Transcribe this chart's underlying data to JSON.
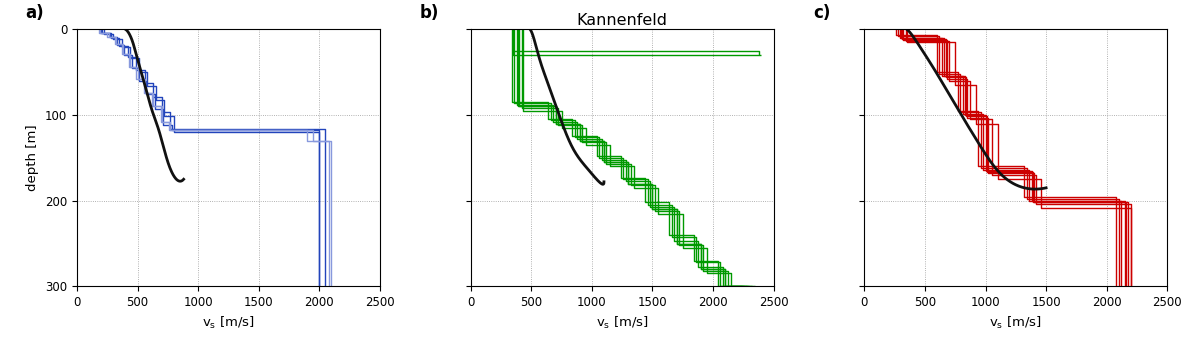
{
  "title_b": "Kannenfeld",
  "panel_labels": [
    "a)",
    "b)",
    "c)"
  ],
  "ylabel": "depth [m]",
  "xlim": [
    0,
    2500
  ],
  "ylim": [
    300,
    0
  ],
  "yticks": [
    0,
    100,
    200,
    300
  ],
  "xticks": [
    0,
    500,
    1000,
    1500,
    2000,
    2500
  ],
  "color_a": "#2244bb",
  "color_a_light": "#8899dd",
  "color_b": "#009900",
  "color_c": "#cc0000",
  "color_black": "#111111",
  "note": "Each profile is [x_coords, y_coords] for direct plotting as step lines",
  "profiles_a_dark": [
    [
      [
        200,
        200,
        270,
        270,
        330,
        330,
        390,
        390,
        450,
        450,
        510,
        510,
        570,
        570,
        640,
        640,
        710,
        710,
        780,
        780,
        2000,
        2000
      ],
      [
        0,
        4,
        4,
        9,
        9,
        18,
        18,
        30,
        30,
        45,
        45,
        60,
        60,
        76,
        76,
        93,
        93,
        112,
        112,
        118,
        118,
        300
      ]
    ],
    [
      [
        220,
        220,
        300,
        300,
        370,
        370,
        440,
        440,
        510,
        510,
        580,
        580,
        650,
        650,
        720,
        720,
        800,
        800,
        2000,
        2000
      ],
      [
        0,
        5,
        5,
        11,
        11,
        21,
        21,
        34,
        34,
        50,
        50,
        66,
        66,
        83,
        83,
        101,
        101,
        120,
        120,
        300
      ]
    ],
    [
      [
        210,
        210,
        280,
        280,
        350,
        350,
        420,
        420,
        490,
        490,
        560,
        560,
        630,
        630,
        700,
        700,
        770,
        770,
        2050,
        2050
      ],
      [
        0,
        4,
        4,
        10,
        10,
        19,
        19,
        32,
        32,
        47,
        47,
        63,
        63,
        79,
        79,
        97,
        97,
        116,
        116,
        300
      ]
    ]
  ],
  "profiles_a_light": [
    [
      [
        180,
        180,
        250,
        250,
        310,
        310,
        370,
        370,
        430,
        430,
        490,
        490,
        550,
        550,
        620,
        620,
        690,
        690,
        760,
        760,
        1900,
        1900,
        2100,
        2100
      ],
      [
        0,
        4,
        4,
        9,
        9,
        17,
        17,
        29,
        29,
        44,
        44,
        58,
        58,
        74,
        74,
        90,
        90,
        108,
        108,
        118,
        118,
        130,
        130,
        300
      ]
    ],
    [
      [
        190,
        190,
        260,
        260,
        320,
        320,
        380,
        380,
        440,
        440,
        500,
        500,
        560,
        560,
        630,
        630,
        700,
        700,
        770,
        770,
        1950,
        1950,
        2080,
        2080
      ],
      [
        0,
        4,
        4,
        9,
        9,
        17,
        17,
        29,
        29,
        44,
        44,
        58,
        58,
        74,
        74,
        90,
        90,
        108,
        108,
        118,
        118,
        130,
        130,
        300
      ]
    ]
  ],
  "black_a": [
    [
      400,
      430,
      460,
      490,
      530,
      570,
      620,
      680,
      750,
      820,
      880
    ],
    [
      0,
      5,
      15,
      30,
      50,
      70,
      95,
      120,
      155,
      175,
      175
    ]
  ],
  "profiles_b": [
    [
      [
        350,
        350,
        2400,
        2400
      ],
      [
        0,
        30,
        30,
        30
      ]
    ],
    [
      [
        400,
        400,
        700,
        700,
        900,
        900,
        1100,
        1100,
        1300,
        1300,
        1500,
        1500,
        1700,
        1700,
        1900,
        1900,
        2100,
        2100,
        2300,
        2300
      ],
      [
        0,
        90,
        90,
        110,
        110,
        130,
        130,
        155,
        155,
        180,
        180,
        210,
        210,
        250,
        250,
        280,
        280,
        300,
        300,
        300
      ]
    ],
    [
      [
        430,
        430,
        750,
        750,
        950,
        950,
        1150,
        1150,
        1350,
        1350,
        1550,
        1550,
        1750,
        1750,
        1950,
        1950,
        2150,
        2150,
        2350,
        2350
      ],
      [
        0,
        95,
        95,
        115,
        115,
        135,
        135,
        160,
        160,
        185,
        185,
        215,
        215,
        255,
        255,
        285,
        285,
        300,
        300,
        300
      ]
    ],
    [
      [
        380,
        380,
        680,
        680,
        880,
        880,
        1080,
        1080,
        1280,
        1280,
        1480,
        1480,
        1680,
        1680,
        1880,
        1880,
        2080,
        2080,
        2280,
        2280
      ],
      [
        0,
        88,
        88,
        108,
        108,
        128,
        128,
        152,
        152,
        177,
        177,
        207,
        207,
        247,
        247,
        277,
        277,
        300,
        300,
        300
      ]
    ],
    [
      [
        360,
        360,
        660,
        660,
        860,
        860,
        1060,
        1060,
        1260,
        1260,
        1460,
        1460,
        1660,
        1660,
        1860,
        1860,
        2060,
        2060,
        2260,
        2260
      ],
      [
        0,
        86,
        86,
        106,
        106,
        126,
        126,
        150,
        150,
        175,
        175,
        205,
        205,
        242,
        242,
        272,
        272,
        300,
        300,
        300
      ]
    ],
    [
      [
        420,
        420,
        720,
        720,
        920,
        920,
        1120,
        1120,
        1320,
        1320,
        1520,
        1520,
        1720,
        1720,
        1920,
        1920,
        2120,
        2120,
        2320,
        2320
      ],
      [
        0,
        92,
        92,
        112,
        112,
        132,
        132,
        157,
        157,
        182,
        182,
        212,
        212,
        252,
        252,
        282,
        282,
        300,
        300,
        300
      ]
    ],
    [
      [
        390,
        390,
        700,
        700,
        900,
        900,
        1100,
        1100,
        1300,
        1300,
        1500,
        1500,
        1700,
        1700,
        1900,
        1900,
        2100,
        2100
      ],
      [
        0,
        90,
        90,
        110,
        110,
        130,
        130,
        155,
        155,
        180,
        180,
        210,
        210,
        250,
        250,
        280,
        280,
        300
      ]
    ],
    [
      [
        340,
        340,
        640,
        640,
        840,
        840,
        1040,
        1040,
        1240,
        1240,
        1440,
        1440,
        1640,
        1640,
        1840,
        1840,
        2040,
        2040,
        2240,
        2240
      ],
      [
        0,
        85,
        85,
        105,
        105,
        125,
        125,
        148,
        148,
        173,
        173,
        202,
        202,
        240,
        240,
        270,
        270,
        300,
        300,
        300
      ]
    ]
  ],
  "black_b": [
    [
      490,
      530,
      580,
      650,
      730,
      840,
      960,
      1060,
      1100
    ],
    [
      0,
      15,
      40,
      68,
      100,
      138,
      162,
      178,
      178
    ]
  ],
  "profiles_c": [
    [
      [
        300,
        300,
        660,
        660,
        830,
        830,
        1000,
        1000,
        1380,
        1380,
        2150,
        2150
      ],
      [
        0,
        10,
        10,
        55,
        55,
        100,
        100,
        165,
        165,
        200,
        200,
        300
      ]
    ],
    [
      [
        280,
        280,
        620,
        620,
        790,
        790,
        960,
        960,
        1340,
        1340,
        2100,
        2100
      ],
      [
        0,
        8,
        8,
        52,
        52,
        97,
        97,
        162,
        162,
        198,
        198,
        300
      ]
    ],
    [
      [
        320,
        320,
        680,
        680,
        850,
        850,
        1020,
        1020,
        1400,
        1400,
        2180,
        2180
      ],
      [
        0,
        12,
        12,
        58,
        58,
        103,
        103,
        168,
        168,
        202,
        202,
        300
      ]
    ],
    [
      [
        260,
        260,
        600,
        600,
        770,
        770,
        940,
        940,
        1320,
        1320,
        2080,
        2080
      ],
      [
        0,
        7,
        7,
        50,
        50,
        95,
        95,
        160,
        160,
        196,
        196,
        300
      ]
    ],
    [
      [
        340,
        340,
        700,
        700,
        870,
        870,
        1050,
        1050,
        1420,
        1420,
        2200,
        2200
      ],
      [
        0,
        14,
        14,
        60,
        60,
        105,
        105,
        170,
        170,
        204,
        204,
        300
      ]
    ],
    [
      [
        350,
        350,
        750,
        750,
        920,
        920,
        1100,
        1100,
        1460,
        1460,
        2200,
        2200
      ],
      [
        0,
        15,
        15,
        65,
        65,
        110,
        110,
        175,
        175,
        208,
        208,
        300
      ]
    ],
    [
      [
        290,
        290,
        640,
        640,
        810,
        810,
        980,
        980,
        1360,
        1360,
        2120,
        2120
      ],
      [
        0,
        10,
        10,
        54,
        54,
        99,
        99,
        164,
        164,
        200,
        200,
        300
      ]
    ],
    [
      [
        310,
        310,
        670,
        670,
        840,
        840,
        1010,
        1010,
        1390,
        1390,
        2160,
        2160
      ],
      [
        0,
        11,
        11,
        56,
        56,
        101,
        101,
        166,
        166,
        201,
        201,
        300
      ]
    ]
  ],
  "black_c": [
    [
      350,
      400,
      480,
      600,
      750,
      930,
      1120,
      1320,
      1500
    ],
    [
      0,
      8,
      25,
      52,
      88,
      130,
      168,
      185,
      185
    ]
  ]
}
